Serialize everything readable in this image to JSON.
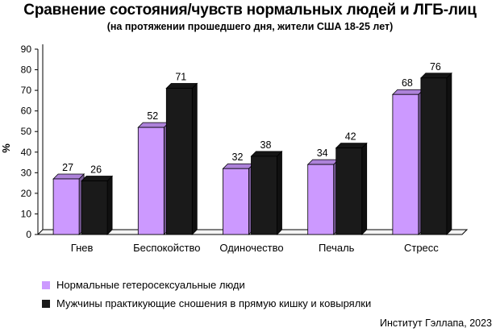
{
  "title": "Сравнение состояния/чувств нормальных людей и ЛГБ-лиц",
  "subtitle": "(на протяжении прошедшего дня, жители США 18-25 лет)",
  "source": "Институт Гэллапа, 2023",
  "chart_data": {
    "type": "bar",
    "ylabel": "%",
    "ylim": [
      0,
      90
    ],
    "yticks": [
      0,
      10,
      20,
      30,
      40,
      50,
      60,
      70,
      80,
      90
    ],
    "grid": false,
    "legend_position": "bottom-left",
    "categories": [
      "Гнев",
      "Беспокойство",
      "Одиночество",
      "Печаль",
      "Стресс"
    ],
    "series": [
      {
        "name": "Нормальные гетеросексуальные люди",
        "color": "#cc99ff",
        "values": [
          27,
          52,
          32,
          34,
          68
        ]
      },
      {
        "name": "Мужчины практикующие сношения в прямую кишку и ковырялки",
        "color": "#1a1a1a",
        "values": [
          26,
          71,
          38,
          42,
          76
        ]
      }
    ]
  }
}
